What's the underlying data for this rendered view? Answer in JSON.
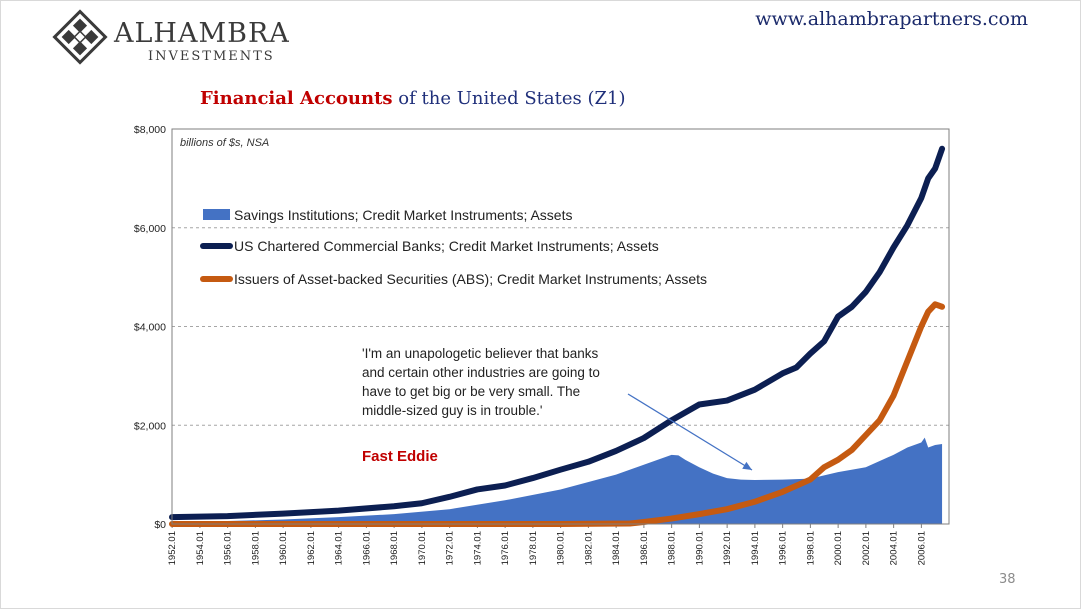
{
  "brand": {
    "name": "Alhambra",
    "sub": "Investments",
    "website": "www.alhambrapartners.com"
  },
  "slide": {
    "title_red": "Financial Accounts",
    "title_blue": " of the United States (Z1)",
    "page_number": "38"
  },
  "colors": {
    "savings": "#4472c4",
    "banks": "#0c1f52",
    "abs": "#c55a11",
    "title_red": "#c00000",
    "title_blue": "#1f2f7a",
    "fast_eddie": "#c00000"
  },
  "chart_data": {
    "type": "line",
    "unit_note": "billions of $s, NSA",
    "ylim": [
      0,
      8000
    ],
    "xlim": [
      1952,
      2008
    ],
    "y_ticks": [
      "$0",
      "$2,000",
      "$4,000",
      "$6,000",
      "$8,000"
    ],
    "y_tick_values": [
      0,
      2000,
      4000,
      6000,
      8000
    ],
    "x_ticks": [
      "1952.01",
      "1954.01",
      "1956.01",
      "1958.01",
      "1960.01",
      "1962.01",
      "1964.01",
      "1966.01",
      "1968.01",
      "1970.01",
      "1972.01",
      "1974.01",
      "1976.01",
      "1978.01",
      "1980.01",
      "1982.01",
      "1984.01",
      "1986.01",
      "1988.01",
      "1990.01",
      "1992.01",
      "1994.01",
      "1996.01",
      "1998.01",
      "2000.01",
      "2002.01",
      "2004.01",
      "2006.01"
    ],
    "grid": true,
    "legend_position": "top-left",
    "series": [
      {
        "name": "Savings Institutions; Credit Market Instruments; Assets",
        "style": "area",
        "x": [
          1952,
          1956,
          1960,
          1964,
          1968,
          1972,
          1976,
          1980,
          1984,
          1986,
          1988,
          1988.5,
          1989,
          1990,
          1991,
          1992,
          1993,
          1994,
          1996,
          1998,
          2000,
          2002,
          2004,
          2005,
          2006,
          2006.25,
          2006.5,
          2007,
          2007.5
        ],
        "y": [
          30,
          60,
          90,
          140,
          200,
          300,
          480,
          700,
          1000,
          1200,
          1400,
          1390,
          1300,
          1150,
          1020,
          930,
          900,
          890,
          900,
          920,
          1050,
          1150,
          1400,
          1550,
          1650,
          1750,
          1550,
          1600,
          1620
        ]
      },
      {
        "name": "US Chartered Commercial Banks; Credit Market Instruments; Assets",
        "style": "line",
        "x": [
          1952,
          1956,
          1960,
          1964,
          1968,
          1970,
          1972,
          1974,
          1976,
          1978,
          1980,
          1982,
          1984,
          1986,
          1988,
          1990,
          1992,
          1994,
          1996,
          1997,
          1998,
          1999,
          2000,
          2001,
          2002,
          2003,
          2004,
          2005,
          2006,
          2006.5,
          2007,
          2007.5
        ],
        "y": [
          140,
          160,
          210,
          270,
          360,
          420,
          550,
          700,
          780,
          930,
          1100,
          1260,
          1480,
          1740,
          2100,
          2420,
          2500,
          2720,
          3050,
          3170,
          3450,
          3700,
          4200,
          4400,
          4700,
          5100,
          5600,
          6050,
          6600,
          7000,
          7200,
          7600
        ]
      },
      {
        "name": "Issuers of Asset-backed Securities (ABS); Credit Market Instruments; Assets",
        "style": "line",
        "x": [
          1952,
          1980,
          1985,
          1986,
          1988,
          1990,
          1992,
          1994,
          1996,
          1998,
          1999,
          2000,
          2001,
          2002,
          2003,
          2004,
          2005,
          2006,
          2006.5,
          2007,
          2007.5
        ],
        "y": [
          0,
          0,
          10,
          40,
          110,
          200,
          300,
          450,
          650,
          900,
          1150,
          1300,
          1500,
          1800,
          2100,
          2600,
          3300,
          4000,
          4300,
          4450,
          4400
        ]
      }
    ],
    "annotation": {
      "quote_lines": [
        "'I'm an unapologetic believer that banks",
        "and certain other industries are going to",
        "have to get big or be very small. The",
        "middle-sized guy is in trouble.'"
      ],
      "attribution": "Fast Eddie",
      "arrow_to": [
        1994,
        1050
      ]
    }
  }
}
